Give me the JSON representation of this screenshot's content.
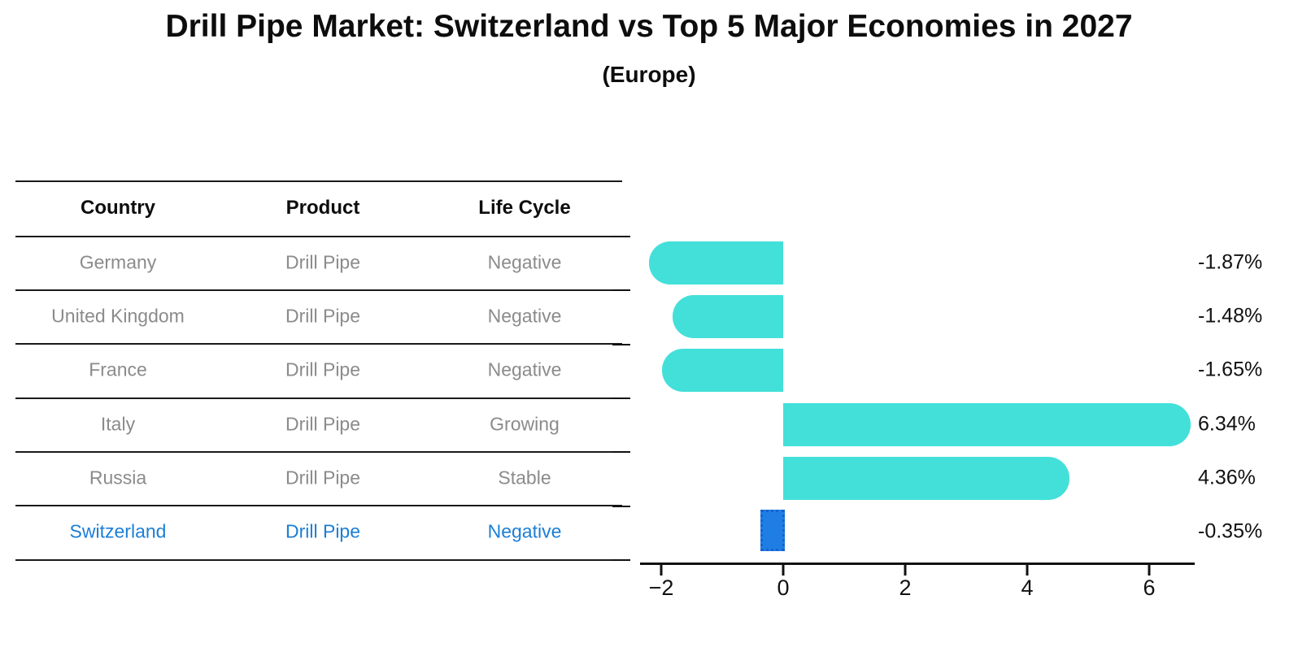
{
  "title": "Drill Pipe Market: Switzerland vs Top 5 Major Economies in 2027",
  "subtitle": "(Europe)",
  "table": {
    "headers": [
      "Country",
      "Product",
      "Life Cycle"
    ],
    "rows": [
      {
        "country": "Germany",
        "product": "Drill Pipe",
        "life_cycle": "Negative",
        "highlight": false
      },
      {
        "country": "United Kingdom",
        "product": "Drill Pipe",
        "life_cycle": "Negative",
        "highlight": false
      },
      {
        "country": "France",
        "product": "Drill Pipe",
        "life_cycle": "Negative",
        "highlight": false
      },
      {
        "country": "Italy",
        "product": "Drill Pipe",
        "life_cycle": "Growing",
        "highlight": false
      },
      {
        "country": "Russia",
        "product": "Drill Pipe",
        "life_cycle": "Stable",
        "highlight": false
      },
      {
        "country": "Switzerland",
        "product": "Drill Pipe",
        "life_cycle": "Negative",
        "highlight": true
      }
    ]
  },
  "chart_data": {
    "type": "bar",
    "orientation": "horizontal",
    "title": "Drill Pipe Market: Switzerland vs Top 5 Major Economies in 2027",
    "subtitle": "(Europe)",
    "categories": [
      "Germany",
      "United Kingdom",
      "France",
      "Italy",
      "Russia",
      "Switzerland"
    ],
    "values": [
      -1.87,
      -1.48,
      -1.65,
      6.34,
      4.36,
      -0.35
    ],
    "value_labels": [
      "-1.87%",
      "-1.48%",
      "-1.65%",
      "6.34%",
      "4.36%",
      "-0.35%"
    ],
    "units": "percent",
    "x_tick_labels": [
      "−2",
      "0",
      "2",
      "4",
      "6"
    ],
    "x_tick_values": [
      -2,
      0,
      2,
      4,
      6
    ],
    "xlim": [
      -2.35,
      6.75
    ],
    "grid": false,
    "legend": false,
    "bar_color": "#43E0DA",
    "highlight_index": 5,
    "highlight_category": "Switzerland",
    "highlight_color": "#1E7EE4",
    "highlight_border_color": "#1563CF"
  },
  "colors": {
    "background": "#FFFFFF",
    "title_text": "#0D0D0D",
    "header_text": "#0D0D0D",
    "row_text": "#8B8B8B",
    "highlight_text": "#1C7ED6",
    "axis": "#111111",
    "value_label_text": "#111111"
  }
}
